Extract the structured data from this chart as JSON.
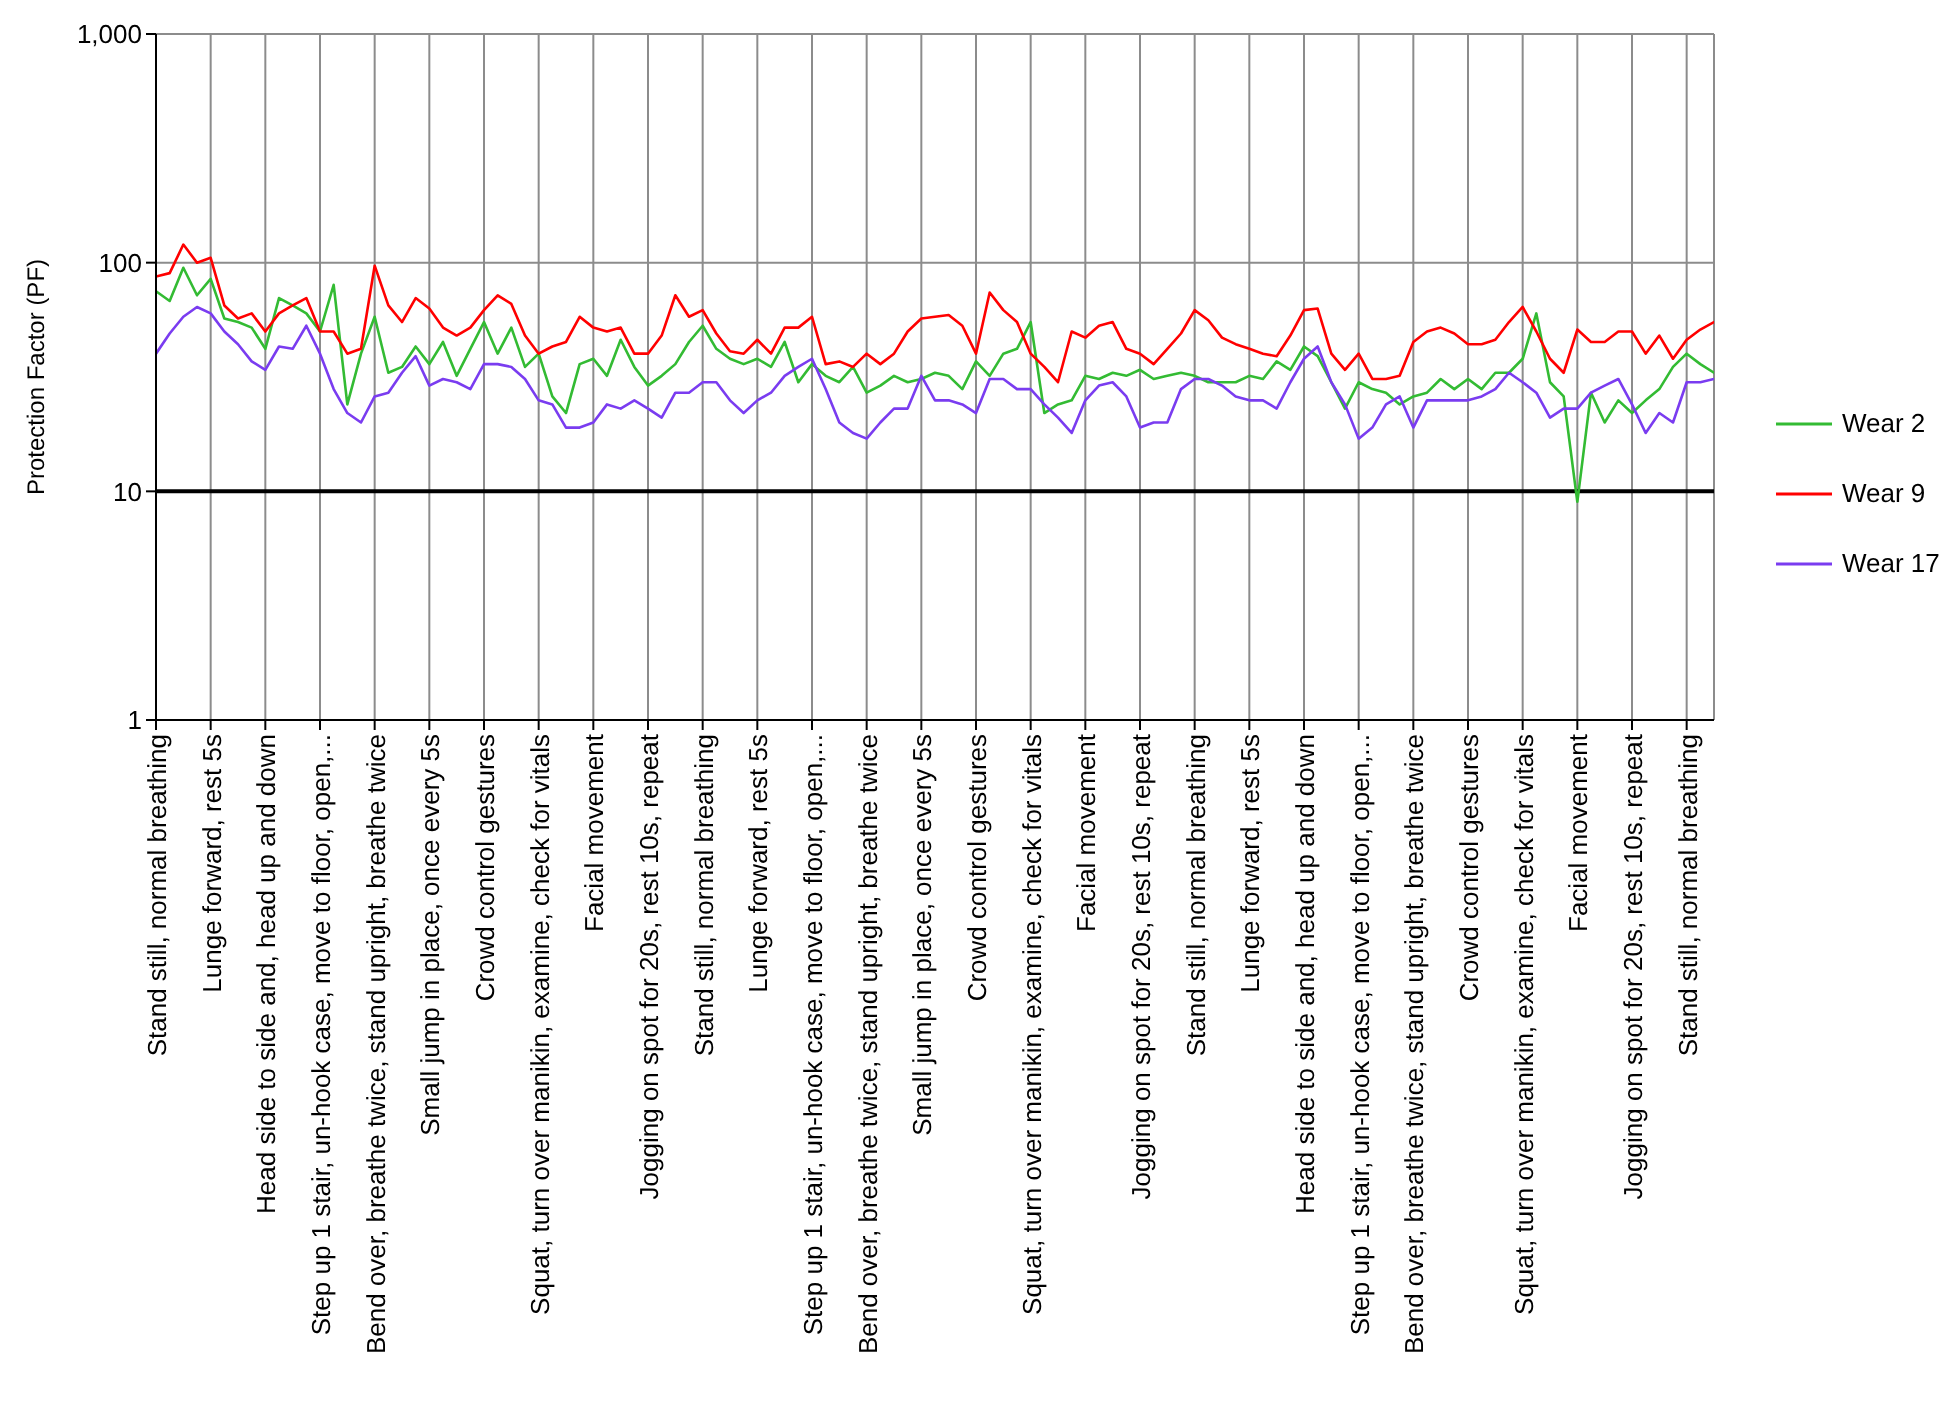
{
  "chart_data": {
    "type": "line",
    "ylabel": "Protection Factor (PF)",
    "categories": [
      "Stand still, normal breathing",
      null,
      null,
      null,
      "Lunge forward, rest 5s",
      null,
      null,
      null,
      "Head side to side and, head up and down",
      null,
      null,
      null,
      "Step up 1 stair, un-hook case, move to floor, open,...",
      null,
      null,
      null,
      "Bend over, breathe twice, stand upright, breathe twice",
      null,
      null,
      null,
      "Small jump in place, once every 5s",
      null,
      null,
      null,
      "Crowd control gestures",
      null,
      null,
      null,
      "Squat, turn over manikin, examine, check for vitals",
      null,
      null,
      null,
      "Facial movement",
      null,
      null,
      null,
      "Jogging on spot for 20s, rest 10s, repeat",
      null,
      null,
      null,
      "Stand still, normal breathing",
      null,
      null,
      null,
      "Lunge forward, rest 5s",
      null,
      null,
      null,
      "Step up 1 stair, un-hook case, move to floor, open,...",
      null,
      null,
      null,
      "Bend over, breathe twice, stand upright, breathe twice",
      null,
      null,
      null,
      "Small jump in place, once every 5s",
      null,
      null,
      null,
      "Crowd control gestures",
      null,
      null,
      null,
      "Squat, turn over manikin, examine, check for vitals",
      null,
      null,
      null,
      "Facial movement",
      null,
      null,
      null,
      "Jogging on spot for 20s, rest 10s, repeat",
      null,
      null,
      null,
      "Stand still, normal breathing",
      null,
      null,
      null,
      "Lunge forward, rest 5s",
      null,
      null,
      null,
      "Head side to side and, head up and down",
      null,
      null,
      null,
      "Step up 1 stair, un-hook case, move to floor, open,...",
      null,
      null,
      null,
      "Bend over, breathe twice, stand upright, breathe twice",
      null,
      null,
      null,
      "Crowd control gestures",
      null,
      null,
      null,
      "Squat, turn over manikin, examine, check for vitals",
      null,
      null,
      null,
      "Facial movement",
      null,
      null,
      null,
      "Jogging on spot for 20s, rest 10s, repeat",
      null,
      null,
      null,
      "Stand still, normal breathing",
      null,
      null
    ],
    "series": [
      {
        "name": "Wear 2",
        "color": "#33bb33",
        "values": [
          75,
          68,
          95,
          72,
          85,
          57,
          55,
          52,
          42,
          70,
          65,
          60,
          50,
          80,
          24,
          40,
          58,
          33,
          35,
          43,
          36,
          45,
          32,
          42,
          55,
          40,
          52,
          35,
          40,
          26,
          22,
          36,
          38,
          32,
          46,
          35,
          29,
          32,
          36,
          45,
          53,
          42,
          38,
          36,
          38,
          35,
          45,
          30,
          36,
          32,
          30,
          35,
          27,
          29,
          32,
          30,
          31,
          33,
          32,
          28,
          37,
          32,
          40,
          42,
          55,
          22,
          24,
          25,
          32,
          31,
          33,
          32,
          34,
          31,
          32,
          33,
          32,
          30,
          30,
          30,
          32,
          31,
          37,
          34,
          43,
          39,
          30,
          23,
          30,
          28,
          27,
          24,
          26,
          27,
          31,
          28,
          31,
          28,
          33,
          33,
          38,
          60,
          30,
          26,
          9,
          27,
          20,
          25,
          22,
          25,
          28,
          35,
          40,
          36,
          33
        ]
      },
      {
        "name": "Wear 9",
        "color": "#ff0000",
        "values": [
          87,
          90,
          120,
          100,
          105,
          65,
          57,
          60,
          50,
          60,
          65,
          70,
          50,
          50,
          40,
          42,
          97,
          65,
          55,
          70,
          63,
          52,
          48,
          52,
          62,
          72,
          66,
          48,
          40,
          43,
          45,
          58,
          52,
          50,
          52,
          40,
          40,
          48,
          72,
          58,
          62,
          49,
          41,
          40,
          46,
          40,
          52,
          52,
          58,
          36,
          37,
          35,
          40,
          36,
          40,
          50,
          57,
          58,
          59,
          53,
          40,
          74,
          62,
          55,
          40,
          35,
          30,
          50,
          47,
          53,
          55,
          42,
          40,
          36,
          42,
          49,
          62,
          56,
          47,
          44,
          42,
          40,
          39,
          48,
          62,
          63,
          40,
          34,
          40,
          31,
          31,
          32,
          45,
          50,
          52,
          49,
          44,
          44,
          46,
          55,
          64,
          50,
          38,
          33,
          51,
          45,
          45,
          50,
          50,
          40,
          48,
          38,
          46,
          51,
          55
        ]
      },
      {
        "name": "Wear 17",
        "color": "#7a3cf0",
        "values": [
          40,
          49,
          58,
          64,
          60,
          50,
          44,
          37,
          34,
          43,
          42,
          53,
          40,
          28,
          22,
          20,
          26,
          27,
          33,
          39,
          29,
          31,
          30,
          28,
          36,
          36,
          35,
          31,
          25,
          24,
          19,
          19,
          20,
          24,
          23,
          25,
          23,
          21,
          27,
          27,
          30,
          30,
          25,
          22,
          25,
          27,
          32,
          35,
          38,
          28,
          20,
          18,
          17,
          20,
          23,
          23,
          32,
          25,
          25,
          24,
          22,
          31,
          31,
          28,
          28,
          24,
          21,
          18,
          25,
          29,
          30,
          26,
          19,
          20,
          20,
          28,
          31,
          31,
          29,
          26,
          25,
          25,
          23,
          30,
          38,
          43,
          30,
          24,
          17,
          19,
          24,
          26,
          19,
          25,
          25,
          25,
          25,
          26,
          28,
          33,
          30,
          27,
          21,
          23,
          23,
          27,
          29,
          31,
          24,
          18,
          22,
          20,
          30,
          30,
          31
        ]
      }
    ],
    "ylim": [
      1,
      1000
    ],
    "yticks": [
      1,
      10,
      100,
      {
        "value": 1000,
        "label": "1,000"
      }
    ],
    "log": true,
    "grid": true,
    "legend": "right",
    "ref_lines": [
      {
        "axis": "y",
        "value": 10,
        "color": "#000000"
      }
    ]
  }
}
